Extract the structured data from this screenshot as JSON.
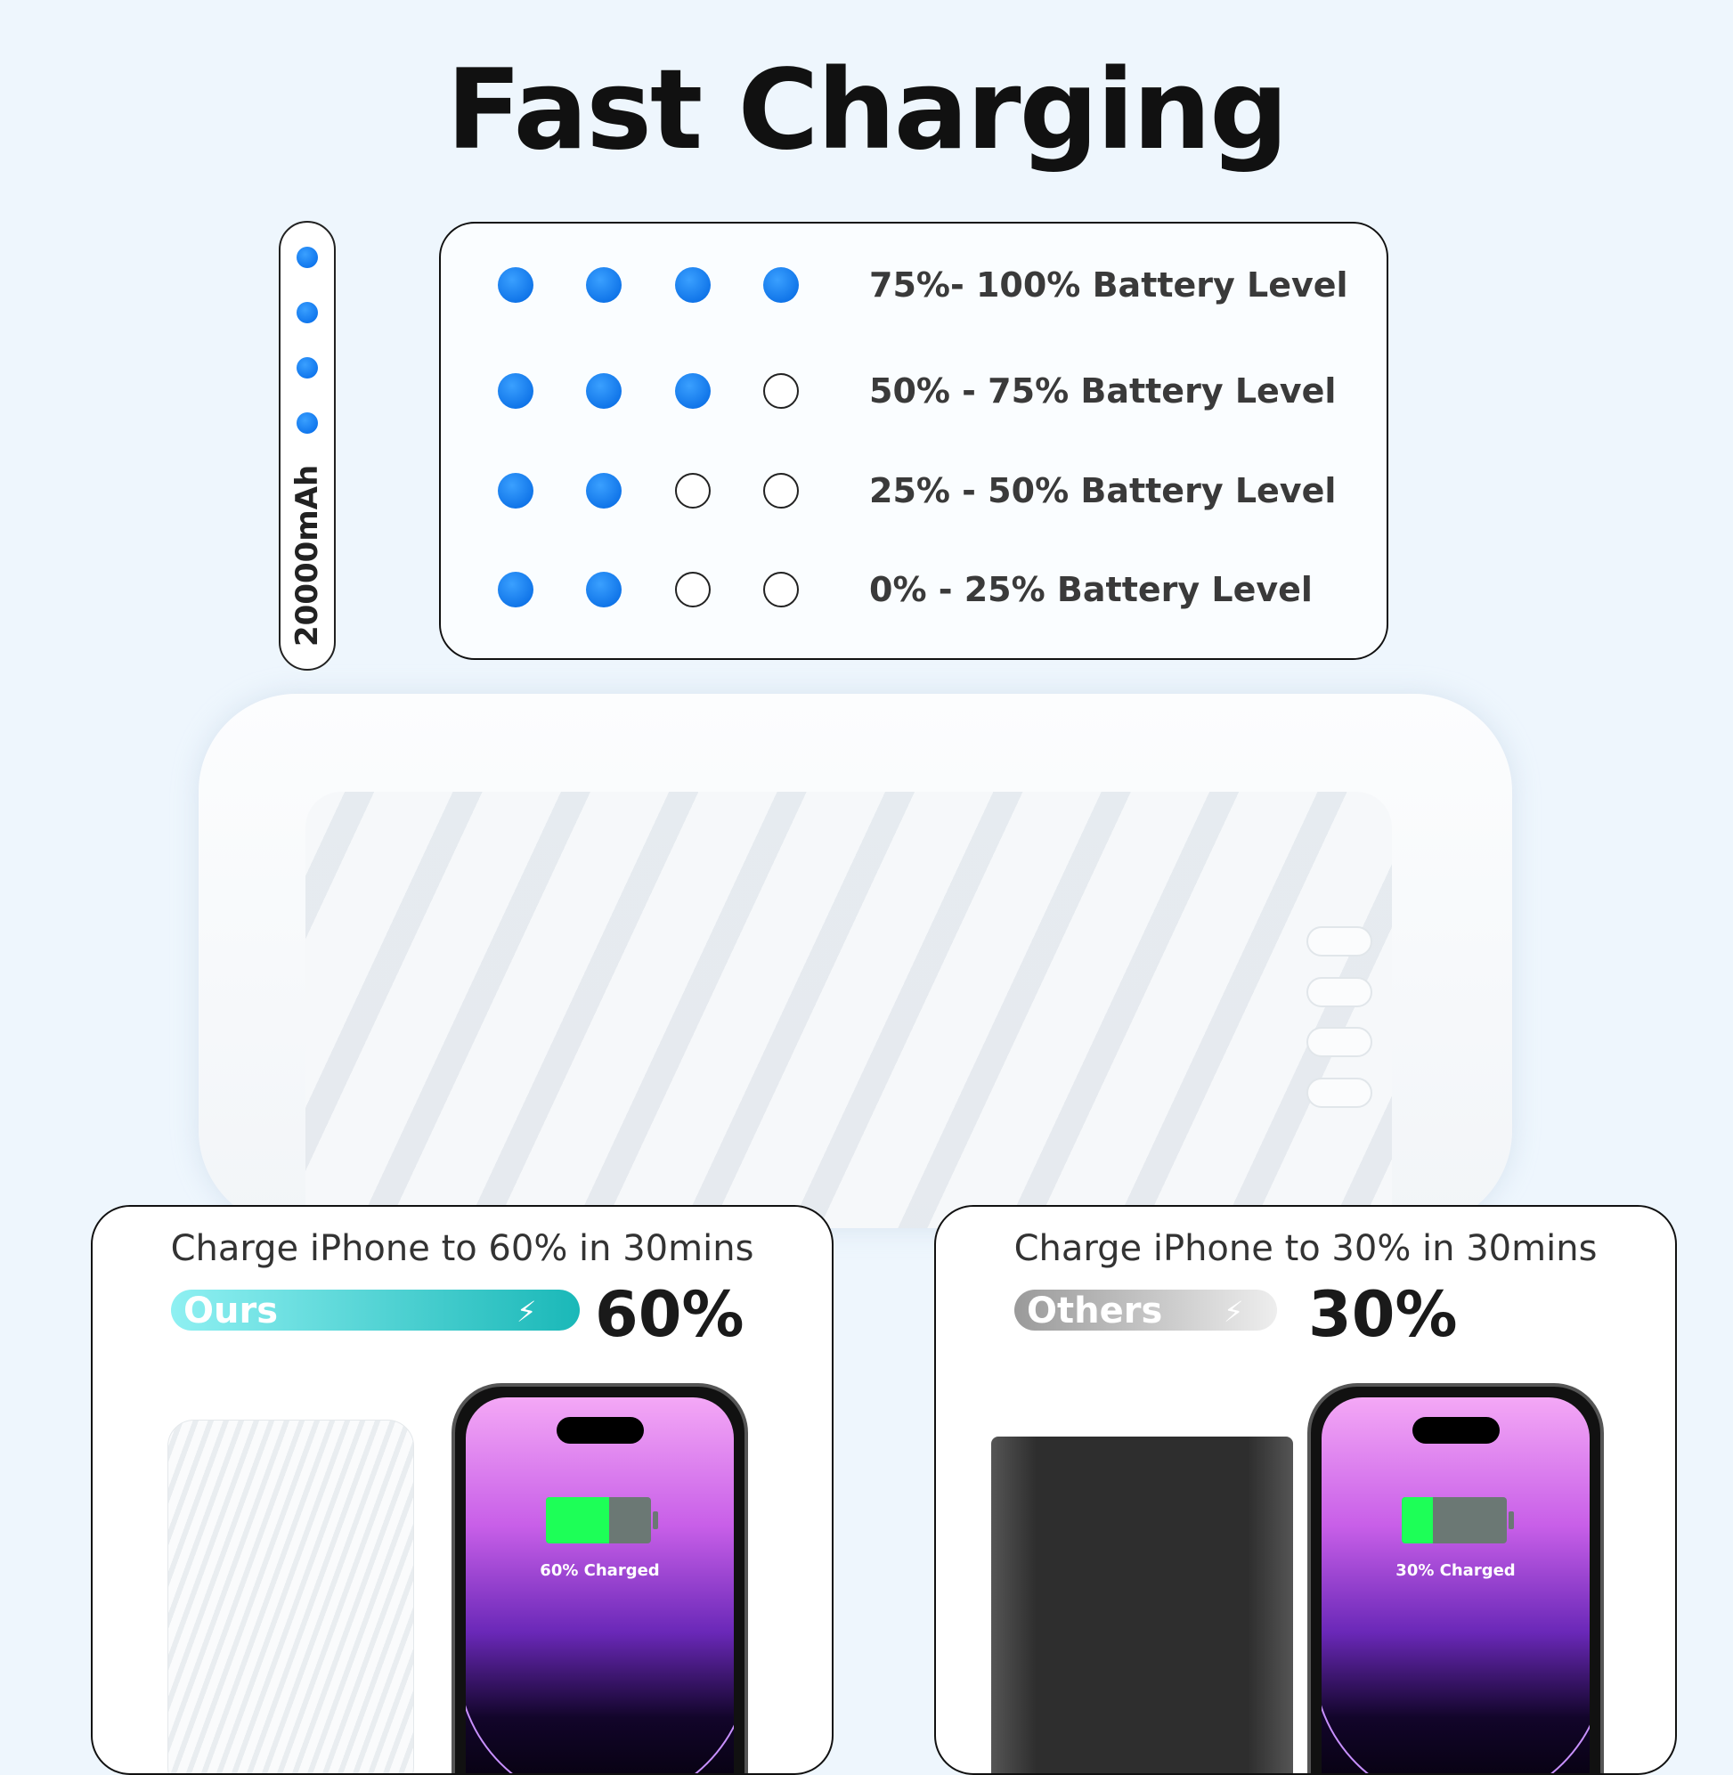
{
  "title": "Fast Charging",
  "capacity_label": "20000mAh",
  "capacity_indicator_dots": 4,
  "accent_color": "#0a78f0",
  "legend": [
    {
      "label": "75%- 100% Battery Level",
      "lit": 4
    },
    {
      "label": "50% - 75% Battery Level",
      "lit": 3
    },
    {
      "label": "25% - 50% Battery Level",
      "lit": 2
    },
    {
      "label": "0% - 25% Battery Level",
      "lit": 2
    }
  ],
  "comparison": [
    {
      "title": "Charge iPhone to 60% in 30mins",
      "bar_label": "Ours",
      "percent_text": "60%",
      "percent": 60,
      "phone_text": "60% Charged",
      "bar_color": "#1fbfc0"
    },
    {
      "title": "Charge iPhone to 30% in 30mins",
      "bar_label": "Others",
      "percent_text": "30%",
      "percent": 30,
      "phone_text": "30% Charged",
      "bar_color": "#a8a8a8"
    }
  ]
}
